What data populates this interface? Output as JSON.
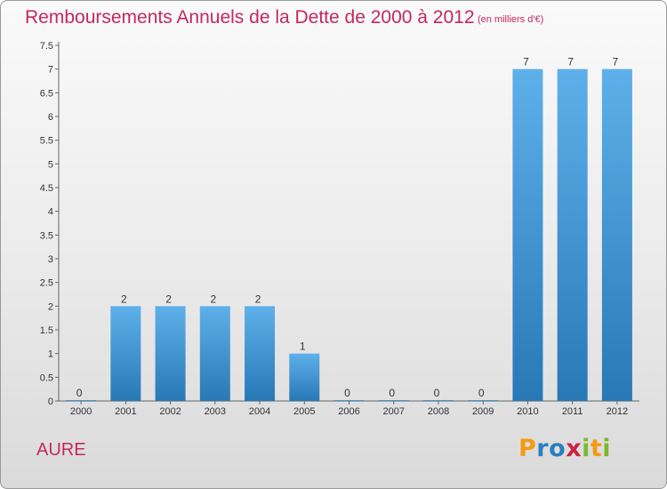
{
  "header": {
    "title": "Remboursements Annuels de la Dette de 2000 à 2012",
    "unit": "(en milliers d'€)"
  },
  "footer": {
    "commune": "AURE",
    "logo": {
      "letters": [
        "P",
        "r",
        "o",
        "x",
        "i",
        "t",
        "i"
      ],
      "colors": [
        "#f39c12",
        "#2a7fc1",
        "#2a7fc1",
        "#cc2244",
        "#7cb82f",
        "#f39c12",
        "#7cb82f"
      ]
    }
  },
  "colors": {
    "bar_top": "#5eb0ea",
    "bar_bottom": "#2878b6",
    "text_accent": "#c4285f"
  },
  "chart_data": {
    "type": "bar",
    "categories": [
      "2000",
      "2001",
      "2002",
      "2003",
      "2004",
      "2005",
      "2006",
      "2007",
      "2008",
      "2009",
      "2010",
      "2011",
      "2012"
    ],
    "values": [
      0,
      2,
      2,
      2,
      2,
      1,
      0,
      0,
      0,
      0,
      7,
      7,
      7
    ],
    "data_labels": [
      "0",
      "2",
      "2",
      "2",
      "2",
      "1",
      "0",
      "0",
      "0",
      "0",
      "7",
      "7",
      "7"
    ],
    "yticks": [
      0,
      0.5,
      1,
      1.5,
      2,
      2.5,
      3,
      3.5,
      4,
      4.5,
      5,
      5.5,
      6,
      6.5,
      7,
      7.5
    ],
    "ytick_labels": [
      "0",
      "0.5",
      "1",
      "1.5",
      "2",
      "2.5",
      "3",
      "3.5",
      "4",
      "4.5",
      "5",
      "5.5",
      "6",
      "6.5",
      "7",
      "7.5"
    ],
    "ylim": [
      0,
      7.5
    ],
    "grid": false
  }
}
